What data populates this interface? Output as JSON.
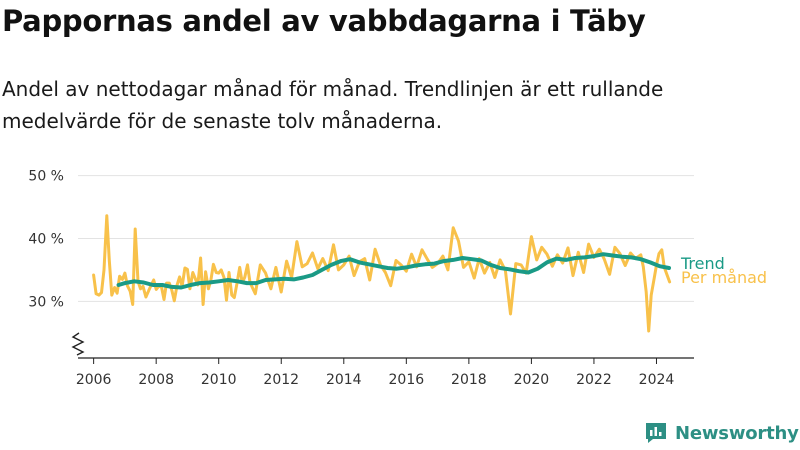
{
  "header": {
    "title": "Pappornas andel av vabbdagarna i Täby",
    "subtitle": "Andel av nettodagar månad för månad. Trendlinjen är ett rullande medelvärde för de senaste tolv månaderna."
  },
  "brand": {
    "name": "Newsworthy"
  },
  "colors": {
    "trend": "#1a9a86",
    "monthly": "#f8c14a",
    "logo": "#2d8f84"
  },
  "chart_data": {
    "type": "line",
    "xlim": [
      2005.5,
      2025.2
    ],
    "ylim": [
      21,
      52
    ],
    "yticks": [
      30,
      40,
      50
    ],
    "ytick_labels": [
      "30 %",
      "40 %",
      "50 %"
    ],
    "xticks": [
      2006,
      2008,
      2010,
      2012,
      2014,
      2016,
      2018,
      2020,
      2022,
      2024
    ],
    "xtick_labels": [
      "2006",
      "2008",
      "2010",
      "2012",
      "2014",
      "2016",
      "2018",
      "2020",
      "2022",
      "2024"
    ],
    "axis_break": true,
    "grid": "horizontal",
    "series": [
      {
        "name": "Per månad",
        "color": "#f8c14a",
        "x": [
          2006.0,
          2006.08,
          2006.17,
          2006.25,
          2006.33,
          2006.42,
          2006.5,
          2006.58,
          2006.67,
          2006.75,
          2006.83,
          2006.92,
          2007.0,
          2007.08,
          2007.17,
          2007.25,
          2007.33,
          2007.42,
          2007.5,
          2007.58,
          2007.67,
          2007.75,
          2007.83,
          2007.92,
          2008.0,
          2008.08,
          2008.17,
          2008.25,
          2008.33,
          2008.42,
          2008.5,
          2008.58,
          2008.67,
          2008.75,
          2008.83,
          2008.92,
          2009.0,
          2009.08,
          2009.17,
          2009.25,
          2009.33,
          2009.42,
          2009.5,
          2009.58,
          2009.67,
          2009.75,
          2009.83,
          2009.92,
          2010.0,
          2010.08,
          2010.17,
          2010.25,
          2010.33,
          2010.42,
          2010.5,
          2010.58,
          2010.67,
          2010.75,
          2010.83,
          2010.92,
          2011.0,
          2011.17,
          2011.33,
          2011.5,
          2011.67,
          2011.83,
          2012.0,
          2012.17,
          2012.33,
          2012.5,
          2012.67,
          2012.83,
          2013.0,
          2013.17,
          2013.33,
          2013.5,
          2013.67,
          2013.83,
          2014.0,
          2014.17,
          2014.33,
          2014.5,
          2014.67,
          2014.83,
          2015.0,
          2015.17,
          2015.33,
          2015.5,
          2015.67,
          2015.83,
          2016.0,
          2016.17,
          2016.33,
          2016.5,
          2016.67,
          2016.83,
          2017.0,
          2017.17,
          2017.33,
          2017.5,
          2017.67,
          2017.83,
          2018.0,
          2018.17,
          2018.33,
          2018.5,
          2018.67,
          2018.83,
          2019.0,
          2019.17,
          2019.33,
          2019.5,
          2019.67,
          2019.83,
          2020.0,
          2020.17,
          2020.33,
          2020.5,
          2020.67,
          2020.83,
          2021.0,
          2021.17,
          2021.33,
          2021.5,
          2021.67,
          2021.83,
          2022.0,
          2022.17,
          2022.33,
          2022.5,
          2022.67,
          2022.83,
          2023.0,
          2023.17,
          2023.33,
          2023.5,
          2023.58,
          2023.67,
          2023.75,
          2023.83,
          2023.92,
          2024.0,
          2024.08,
          2024.17,
          2024.25,
          2024.33,
          2024.42
        ],
        "values": [
          34.2,
          31.2,
          31.0,
          31.4,
          35.0,
          43.6,
          36.5,
          31.0,
          32.2,
          31.3,
          34.0,
          33.5,
          34.5,
          32.5,
          31.6,
          29.5,
          41.5,
          33.2,
          32.0,
          32.4,
          30.7,
          31.6,
          32.5,
          33.4,
          31.9,
          32.4,
          32.3,
          30.3,
          32.9,
          32.9,
          31.8,
          30.1,
          32.6,
          33.9,
          32.4,
          35.3,
          35.1,
          32.0,
          34.6,
          33.6,
          32.6,
          36.9,
          29.5,
          34.7,
          32.0,
          33.4,
          35.9,
          34.6,
          34.5,
          35.0,
          33.8,
          30.2,
          34.6,
          31.0,
          30.6,
          32.7,
          35.4,
          33.0,
          33.8,
          35.8,
          33.0,
          31.2,
          35.8,
          34.5,
          32.0,
          35.4,
          31.5,
          36.4,
          33.8,
          39.5,
          35.5,
          36.0,
          37.7,
          35.2,
          36.8,
          34.9,
          39.0,
          35.0,
          35.8,
          37.2,
          34.1,
          36.3,
          36.8,
          33.4,
          38.3,
          35.8,
          34.6,
          32.5,
          36.5,
          35.8,
          34.8,
          37.5,
          35.5,
          38.2,
          36.7,
          35.4,
          36.0,
          37.2,
          35.0,
          41.7,
          39.6,
          35.4,
          36.3,
          33.7,
          36.8,
          34.5,
          36.2,
          33.8,
          36.6,
          34.9,
          28.0,
          36.0,
          35.8,
          34.5,
          40.3,
          36.6,
          38.6,
          37.5,
          35.6,
          37.4,
          36.1,
          38.5,
          34.1,
          37.8,
          34.6,
          39.1,
          37.0,
          38.3,
          36.7,
          34.3,
          38.6,
          37.6,
          35.7,
          37.7,
          36.8,
          37.4,
          35.5,
          31.5,
          25.3,
          31.0,
          33.5,
          35.8,
          37.6,
          38.2,
          35.4,
          34.3,
          33.1
        ]
      },
      {
        "name": "Trend",
        "color": "#1a9a86",
        "x": [
          2006.8,
          2007.0,
          2007.3,
          2007.6,
          2007.9,
          2008.2,
          2008.5,
          2008.8,
          2009.1,
          2009.4,
          2009.7,
          2010.0,
          2010.3,
          2010.6,
          2010.9,
          2011.2,
          2011.5,
          2011.8,
          2012.1,
          2012.4,
          2012.7,
          2013.0,
          2013.3,
          2013.6,
          2013.9,
          2014.2,
          2014.5,
          2014.8,
          2015.1,
          2015.4,
          2015.7,
          2016.0,
          2016.3,
          2016.6,
          2016.9,
          2017.2,
          2017.5,
          2017.8,
          2018.1,
          2018.4,
          2018.7,
          2019.0,
          2019.3,
          2019.6,
          2019.9,
          2020.2,
          2020.5,
          2020.8,
          2021.1,
          2021.4,
          2021.7,
          2022.0,
          2022.3,
          2022.6,
          2022.9,
          2023.2,
          2023.5,
          2023.8,
          2024.1,
          2024.4
        ],
        "values": [
          32.6,
          32.9,
          33.2,
          33.0,
          32.6,
          32.6,
          32.3,
          32.2,
          32.6,
          32.9,
          33.0,
          33.2,
          33.4,
          33.2,
          32.9,
          32.9,
          33.4,
          33.5,
          33.6,
          33.5,
          33.8,
          34.2,
          35.0,
          35.8,
          36.4,
          36.7,
          36.2,
          35.9,
          35.6,
          35.3,
          35.2,
          35.4,
          35.7,
          35.9,
          36.0,
          36.4,
          36.6,
          36.9,
          36.7,
          36.5,
          35.8,
          35.3,
          35.1,
          34.8,
          34.6,
          35.2,
          36.2,
          36.8,
          36.6,
          36.9,
          37.0,
          37.2,
          37.5,
          37.3,
          37.1,
          37.0,
          36.7,
          36.2,
          35.6,
          35.3
        ]
      }
    ],
    "legend": {
      "placement": "right-end",
      "entries": [
        "Trend",
        "Per månad"
      ]
    }
  }
}
